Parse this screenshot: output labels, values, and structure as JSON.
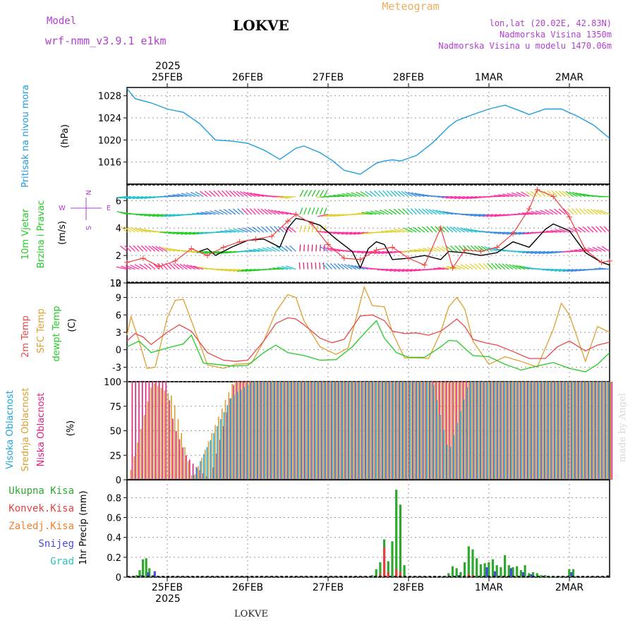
{
  "header": {
    "model_label": "Model",
    "model_name": "wrf-nmm_v3.9.1 e1km",
    "title": "LOKVE",
    "meteogram": "Meteogram",
    "lonlat": "lon,lat (20.02E, 42.83N)",
    "altitude": "Nadmorska Visina 1350m",
    "model_altitude": "Nadmorska Visina u modelu 1470.06m"
  },
  "footer": {
    "station": "LOKVE",
    "watermark": "made by Angel"
  },
  "colors": {
    "pressure": "#1e9ee0",
    "wind_speed": "#000000",
    "gust": "#f04040",
    "t2m": "#e84a4a",
    "tsfc": "#e0a030",
    "dewpt": "#22cc22",
    "cloud_high": "#1aa5e0",
    "cloud_mid": "#d8a030",
    "cloud_low": "#e0207a",
    "precip_total": "#2ea82e",
    "precip_conv": "#e84040",
    "precip_freezing": "#f08030",
    "precip_snow": "#4a4ae0",
    "precip_hail": "#30c0c0"
  },
  "chart_data": [
    {
      "type": "line",
      "panel": "pressure",
      "ylabel": [
        "Pritisak na nivou mora",
        "(hPa)"
      ],
      "x_range_days": [
        0,
        6
      ],
      "x_start_label": "2025-02-24 12:00",
      "top_year": "2025",
      "bottom_year": "2025",
      "date_ticks": [
        {
          "day": 0.5,
          "label": "25FEB"
        },
        {
          "day": 1.5,
          "label": "26FEB"
        },
        {
          "day": 2.5,
          "label": "27FEB"
        },
        {
          "day": 3.5,
          "label": "28FEB"
        },
        {
          "day": 4.5,
          "label": "1MAR"
        },
        {
          "day": 5.5,
          "label": "2MAR"
        }
      ],
      "ylim": [
        1012,
        1029.5
      ],
      "yticks": [
        1016,
        1020,
        1024,
        1028
      ],
      "x_days": [
        0,
        0.1,
        0.3,
        0.5,
        0.7,
        0.9,
        1.1,
        1.3,
        1.5,
        1.7,
        1.9,
        2.1,
        2.2,
        2.4,
        2.55,
        2.7,
        2.9,
        3.1,
        3.2,
        3.3,
        3.4,
        3.6,
        3.8,
        4.0,
        4.1,
        4.3,
        4.5,
        4.7,
        4.9,
        5.0,
        5.2,
        5.4,
        5.6,
        5.8,
        6.0
      ],
      "values": [
        1029.3,
        1027.5,
        1026.7,
        1025.6,
        1025.0,
        1023.0,
        1020.0,
        1019.8,
        1019.4,
        1018.2,
        1016.5,
        1018.5,
        1018.9,
        1017.7,
        1016.3,
        1014.5,
        1013.8,
        1015.8,
        1016.2,
        1016.4,
        1016.2,
        1017.2,
        1019.5,
        1022.4,
        1023.5,
        1024.6,
        1025.6,
        1026.3,
        1025.2,
        1024.6,
        1025.6,
        1025.6,
        1024.3,
        1022.7,
        1020.3
      ]
    },
    {
      "type": "line",
      "panel": "wind",
      "ylabel": [
        "10m Vjetar",
        "Brzina i Pravac",
        "(m/s)"
      ],
      "compass": {
        "n": "N",
        "s": "S",
        "e": "E",
        "w": "W"
      },
      "ylim": [
        0,
        7.2
      ],
      "yticks": [
        0,
        2,
        4,
        6
      ],
      "barb_rows": [
        1,
        2.3,
        3.7,
        5,
        6.3
      ],
      "series": [
        {
          "role": "speed",
          "x_days": [
            0.9,
            1.0,
            1.1,
            1.3,
            1.5,
            1.7,
            1.9,
            2.0,
            2.1,
            2.2,
            2.4,
            2.6,
            2.8,
            2.9,
            3.0,
            3.1,
            3.2,
            3.3,
            3.5,
            3.7,
            3.9,
            4.0,
            4.2,
            4.4,
            4.6,
            4.8,
            5.0,
            5.2,
            5.3,
            5.5,
            5.7,
            5.9,
            6.0
          ],
          "values": [
            2.3,
            2.5,
            2.0,
            2.6,
            3.1,
            3.2,
            2.6,
            4.0,
            4.7,
            4.6,
            4.2,
            3.2,
            2.3,
            1.1,
            2.5,
            3.0,
            2.8,
            1.7,
            1.8,
            2.0,
            1.7,
            2.3,
            2.2,
            2.0,
            2.2,
            3.0,
            2.6,
            3.9,
            4.3,
            3.8,
            2.2,
            1.5,
            1.3
          ]
        },
        {
          "role": "gust",
          "x_days": [
            0,
            0.2,
            0.4,
            0.6,
            0.8,
            1.0,
            1.2,
            1.4,
            1.6,
            1.8,
            2.0,
            2.1,
            2.3,
            2.5,
            2.7,
            2.9,
            3.1,
            3.3,
            3.5,
            3.7,
            3.9,
            4.05,
            4.2,
            4.4,
            4.6,
            4.8,
            5.0,
            5.1,
            5.3,
            5.5,
            5.7,
            5.9,
            6.0
          ],
          "values": [
            1.5,
            1.8,
            1.2,
            1.6,
            2.5,
            2.0,
            2.6,
            3.0,
            3.2,
            3.4,
            4.5,
            5.0,
            4.3,
            2.8,
            1.8,
            1.7,
            2.4,
            2.6,
            1.8,
            1.3,
            4.0,
            1.1,
            2.4,
            2.3,
            2.6,
            3.6,
            5.4,
            6.8,
            6.3,
            4.8,
            2.4,
            1.5,
            1.6
          ]
        }
      ]
    },
    {
      "type": "line",
      "panel": "temperature",
      "ylabel": [
        "2m Temp",
        "SFC Temp",
        "dewpt Temp",
        "(C)"
      ],
      "ylim": [
        -5.5,
        11.5
      ],
      "yticks": [
        -3,
        0,
        3,
        6,
        9
      ],
      "top_tick_label": "12",
      "series": [
        {
          "name": "2m Temp",
          "x_days": [
            0,
            0.1,
            0.2,
            0.3,
            0.5,
            0.65,
            0.8,
            1.0,
            1.2,
            1.35,
            1.5,
            1.7,
            1.85,
            2.0,
            2.1,
            2.2,
            2.4,
            2.55,
            2.7,
            2.9,
            3.05,
            3.2,
            3.3,
            3.45,
            3.6,
            3.75,
            3.9,
            4.0,
            4.1,
            4.2,
            4.3,
            4.45,
            4.6,
            4.8,
            5.0,
            5.2,
            5.35,
            5.5,
            5.7,
            5.85,
            6.0
          ],
          "values": [
            1.5,
            2.8,
            2.2,
            0.9,
            3.0,
            4.3,
            3.2,
            -0.5,
            -1.8,
            -2.0,
            -1.8,
            1.5,
            4.5,
            5.5,
            5.3,
            4.3,
            2.0,
            1.2,
            1.8,
            5.8,
            6.0,
            5.0,
            3.2,
            2.8,
            2.9,
            2.5,
            3.2,
            4.2,
            5.3,
            4.0,
            1.8,
            1.2,
            0.8,
            -0.3,
            -1.5,
            -1.5,
            0.5,
            1.5,
            -0.2,
            0.8,
            1.3
          ]
        },
        {
          "name": "SFC Temp",
          "x_days": [
            0,
            0.05,
            0.15,
            0.25,
            0.35,
            0.5,
            0.6,
            0.7,
            0.8,
            1.0,
            1.2,
            1.35,
            1.55,
            1.7,
            1.85,
            2.0,
            2.1,
            2.2,
            2.4,
            2.6,
            2.75,
            2.85,
            2.95,
            3.05,
            3.2,
            3.3,
            3.45,
            3.6,
            3.75,
            3.9,
            4.0,
            4.1,
            4.2,
            4.3,
            4.5,
            4.7,
            4.9,
            5.1,
            5.3,
            5.4,
            5.5,
            5.7,
            5.85,
            6.0
          ],
          "values": [
            2.5,
            5.7,
            1.5,
            -3.2,
            -3.0,
            5.5,
            8.5,
            8.7,
            5.0,
            -2.6,
            -3.2,
            -2.5,
            -2.3,
            1.5,
            6.5,
            9.5,
            9.0,
            5.0,
            0.5,
            -0.8,
            0.3,
            5.5,
            10.8,
            7.6,
            7.4,
            3.0,
            -1.4,
            -1.4,
            -1.5,
            3.0,
            7.4,
            9.0,
            7.0,
            1.5,
            -2.5,
            -1.2,
            -2.0,
            -3.0,
            3.5,
            8.0,
            6.0,
            -2.0,
            4.0,
            3.0
          ]
        },
        {
          "name": "dewpt Temp",
          "x_days": [
            0,
            0.15,
            0.3,
            0.5,
            0.7,
            0.8,
            0.95,
            1.1,
            1.3,
            1.5,
            1.7,
            1.85,
            2.0,
            2.2,
            2.4,
            2.6,
            2.8,
            2.95,
            3.1,
            3.2,
            3.35,
            3.5,
            3.7,
            3.9,
            4.0,
            4.1,
            4.3,
            4.5,
            4.7,
            4.9,
            5.1,
            5.3,
            5.5,
            5.7,
            5.85,
            6.0
          ],
          "values": [
            0.5,
            1.5,
            -0.5,
            0.3,
            1.0,
            2.5,
            -2.3,
            -2.5,
            -2.8,
            -2.7,
            -0.5,
            0.8,
            -0.5,
            -1.0,
            -1.8,
            -1.7,
            0.5,
            2.8,
            5.0,
            2.0,
            -0.5,
            -1.3,
            -1.3,
            0.5,
            1.6,
            1.5,
            -1.0,
            -1.2,
            -2.5,
            -3.5,
            -2.8,
            -2.2,
            -3.2,
            -3.8,
            -2.5,
            -0.5
          ]
        }
      ]
    },
    {
      "type": "bar",
      "panel": "clouds",
      "ylabel": [
        "Visoka Oblacnost",
        "Srednja Oblacnost",
        "Niska Oblacnost",
        "(%)"
      ],
      "ylim": [
        0,
        100
      ],
      "yticks": [
        0,
        25,
        50,
        75,
        100
      ],
      "series": [
        {
          "name": "Visoka Oblacnost",
          "x_days": [
            0,
            0.3,
            0.55,
            0.8,
            1.3,
            1.55,
            2.0,
            2.3,
            2.6,
            2.9,
            3.2,
            3.5,
            3.8,
            4.0,
            4.25,
            4.6,
            5.0,
            5.4,
            5.8,
            6.0
          ],
          "values": [
            0,
            0,
            0,
            0,
            85,
            100,
            100,
            100,
            100,
            100,
            100,
            100,
            100,
            28,
            100,
            100,
            100,
            100,
            100,
            100
          ]
        },
        {
          "name": "Srednja Oblacnost",
          "x_days": [
            0,
            0.3,
            0.55,
            0.8,
            1.3,
            1.55,
            2.0,
            2.3,
            2.6,
            2.9,
            3.2,
            3.5,
            3.8,
            4.0,
            4.25,
            4.6,
            5.0,
            5.4,
            5.8,
            6.0
          ],
          "values": [
            0,
            100,
            85,
            0,
            100,
            100,
            100,
            100,
            100,
            100,
            100,
            100,
            100,
            100,
            100,
            100,
            100,
            100,
            100,
            100
          ]
        },
        {
          "name": "Niska Oblacnost",
          "x_days": [
            0,
            0.1,
            0.3,
            0.45,
            0.55,
            0.7,
            0.8,
            1.0,
            1.3,
            1.55,
            2.0,
            2.3,
            2.6,
            2.9,
            3.2,
            3.5,
            3.8,
            4.0,
            4.25,
            4.6,
            5.0,
            5.4,
            5.8,
            6.0
          ],
          "values": [
            100,
            100,
            100,
            100,
            55,
            25,
            15,
            0,
            100,
            100,
            100,
            100,
            100,
            100,
            100,
            100,
            100,
            100,
            100,
            100,
            100,
            100,
            100,
            100
          ]
        }
      ]
    },
    {
      "type": "bar",
      "panel": "precip",
      "ylabel": [
        "1hr Precip (mm)"
      ],
      "legend": [
        "Ukupna Kisa",
        "Konvek.Kisa",
        "Zaledj.Kisa",
        "Snijeg",
        "Grad"
      ],
      "ylim": [
        0,
        0.98
      ],
      "yticks": [
        0,
        0.2,
        0.4,
        0.6,
        0.8
      ],
      "series": [
        {
          "name": "Ukupna Kisa",
          "x_days": [
            0.12,
            0.16,
            0.2,
            0.24,
            0.28,
            0.32,
            3.05,
            3.1,
            3.15,
            3.2,
            3.25,
            3.3,
            3.35,
            3.4,
            3.45,
            4.0,
            4.05,
            4.1,
            4.15,
            4.2,
            4.25,
            4.3,
            4.35,
            4.4,
            4.45,
            4.5,
            4.55,
            4.6,
            4.65,
            4.7,
            4.75,
            4.8,
            4.85,
            4.9,
            4.95,
            5.0,
            5.05,
            5.1,
            5.15,
            5.2,
            5.25,
            5.3,
            5.4,
            5.5,
            5.55,
            5.98
          ],
          "values": [
            0.02,
            0.07,
            0.18,
            0.19,
            0.09,
            0.02,
            0.02,
            0.08,
            0.15,
            0.38,
            0.16,
            0.36,
            0.88,
            0.73,
            0.12,
            0.04,
            0.11,
            0.09,
            0.05,
            0.15,
            0.31,
            0.28,
            0.19,
            0.13,
            0.14,
            0.15,
            0.18,
            0.12,
            0.1,
            0.22,
            0.12,
            0.1,
            0.11,
            0.07,
            0.12,
            0.04,
            0.05,
            0.04,
            0.02,
            0.02,
            0.01,
            0.01,
            0.01,
            0.08,
            0.08,
            0.02
          ]
        },
        {
          "name": "Konvek.Kisa",
          "x_days": [
            0.2,
            3.15,
            3.2,
            3.25,
            3.35,
            3.4,
            4.25,
            4.3,
            4.7
          ],
          "values": [
            0.02,
            0.03,
            0.3,
            0.05,
            0.08,
            0.05,
            0.03,
            0.02,
            0.01
          ]
        },
        {
          "name": "Snijeg",
          "x_days": [
            0.16,
            0.24,
            0.32,
            4.1,
            4.45,
            4.55,
            4.75,
            4.9,
            5.0,
            5.5
          ],
          "values": [
            0.02,
            0.05,
            0.06,
            0.02,
            0.1,
            0.06,
            0.09,
            0.05,
            0.03,
            0.05
          ]
        }
      ]
    }
  ]
}
